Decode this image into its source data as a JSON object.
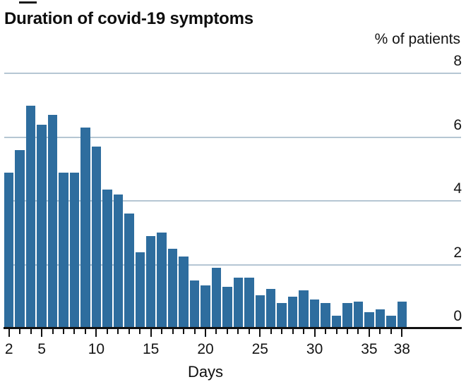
{
  "header": {
    "title": "Duration of covid-19 symptoms",
    "unit_label": "% of patients"
  },
  "chart_data": {
    "type": "bar",
    "title": "Duration of covid-19 symptoms",
    "xlabel": "Days",
    "ylabel": "% of patients",
    "x": [
      2,
      3,
      4,
      5,
      6,
      7,
      8,
      9,
      10,
      11,
      12,
      13,
      14,
      15,
      16,
      17,
      18,
      19,
      20,
      21,
      22,
      23,
      24,
      25,
      26,
      27,
      28,
      29,
      30,
      31,
      32,
      33,
      34,
      35,
      36,
      37,
      38
    ],
    "values": [
      4.9,
      5.6,
      7.0,
      6.4,
      6.7,
      4.9,
      4.9,
      6.3,
      5.7,
      4.35,
      4.2,
      3.6,
      2.4,
      2.9,
      3.0,
      2.5,
      2.25,
      1.5,
      1.35,
      1.9,
      1.3,
      1.6,
      1.6,
      1.05,
      1.25,
      0.8,
      1.0,
      1.2,
      0.9,
      0.8,
      0.4,
      0.8,
      0.85,
      0.5,
      0.6,
      0.4,
      0.85
    ],
    "ylim": [
      0,
      8
    ],
    "yticks": [
      0,
      2,
      4,
      6,
      8
    ],
    "xticks_labeled": [
      2,
      5,
      10,
      15,
      20,
      25,
      30,
      35,
      38
    ],
    "grid": true,
    "legend": "none",
    "bar_color": "#2e6d9e",
    "gridline_color": "#b5c6d3",
    "axis_color": "#101010"
  }
}
